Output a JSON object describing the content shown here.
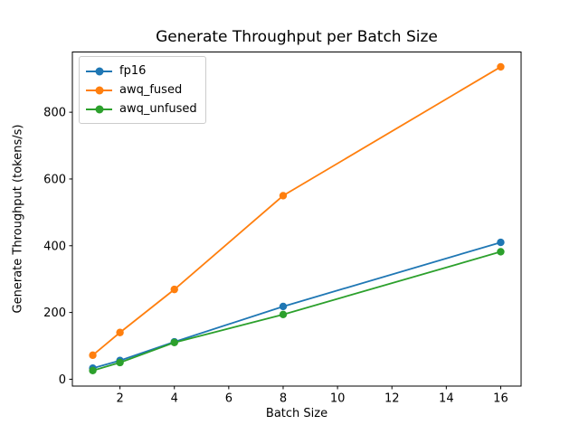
{
  "figure": {
    "background": "#ffffff",
    "text_color": "#000000",
    "spine_color": "#000000",
    "legend_border_color": "#cccccc"
  },
  "chart_data": {
    "type": "line",
    "title": "Generate Throughput per Batch Size",
    "xlabel": "Batch Size",
    "ylabel": "Generate Throughput (tokens/s)",
    "x": [
      1,
      2,
      4,
      8,
      16
    ],
    "series": [
      {
        "name": "fp16",
        "color": "#1f77b4",
        "values": [
          33,
          56,
          112,
          218,
          410
        ]
      },
      {
        "name": "awq_fused",
        "color": "#ff7f0e",
        "values": [
          72,
          140,
          269,
          550,
          936
        ]
      },
      {
        "name": "awq_unfused",
        "color": "#2ca02c",
        "values": [
          26,
          50,
          110,
          194,
          382
        ]
      }
    ],
    "xlim": [
      0.25,
      16.75
    ],
    "ylim": [
      -20.5,
      980.5
    ],
    "xticks": [
      2,
      4,
      6,
      8,
      10,
      12,
      14,
      16
    ],
    "yticks": [
      0,
      200,
      400,
      600,
      800
    ],
    "grid": false,
    "marker": "o",
    "legend_position": "upper-left"
  }
}
